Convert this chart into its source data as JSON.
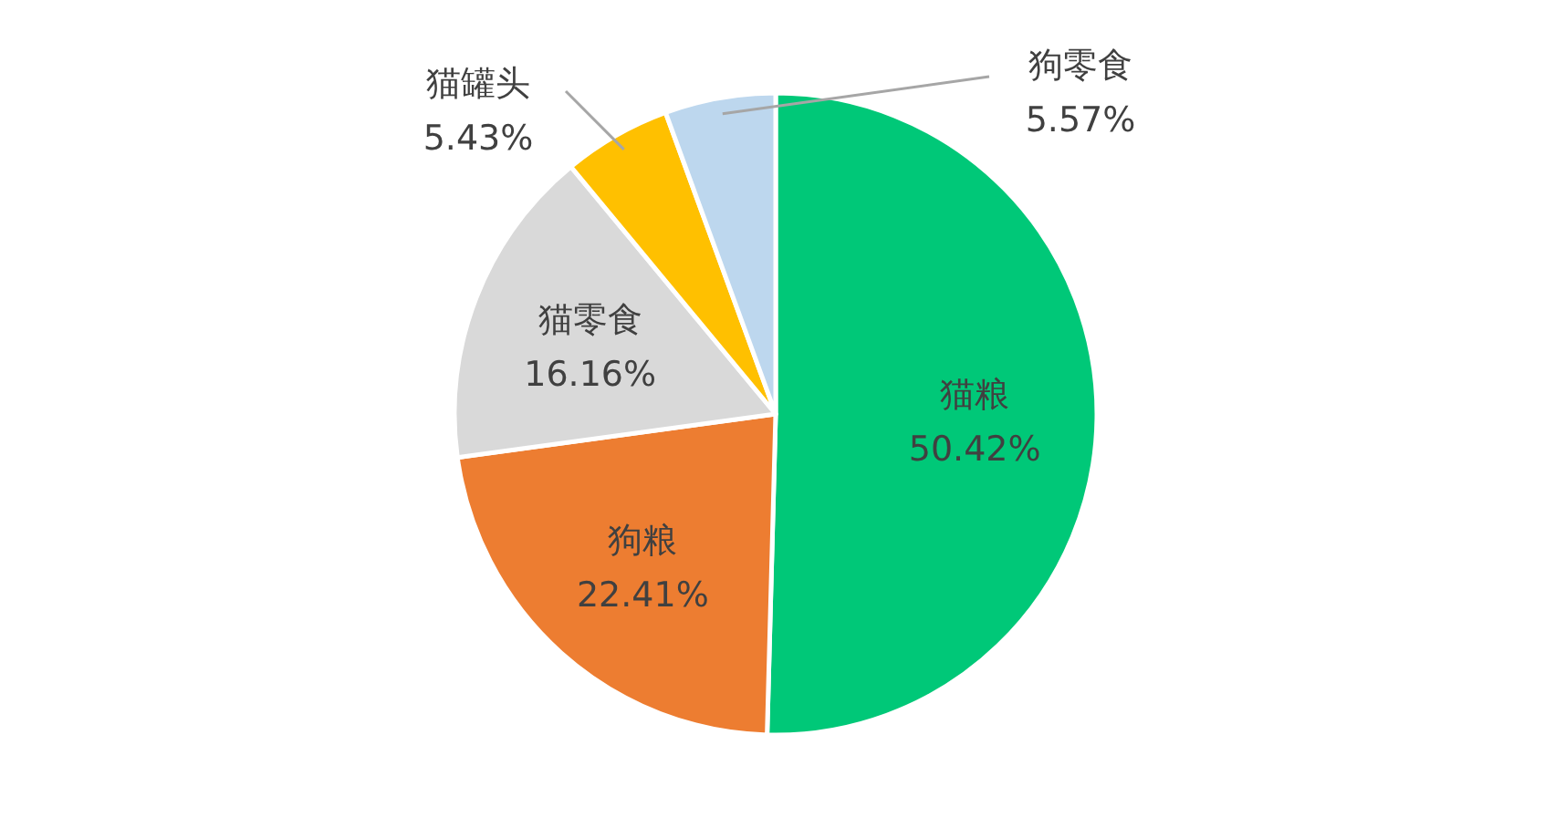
{
  "chart_data": {
    "type": "pie",
    "categories": [
      "猫粮",
      "狗粮",
      "猫零食",
      "猫罐头",
      "狗零食"
    ],
    "values": [
      50.42,
      22.41,
      16.16,
      5.43,
      5.57
    ],
    "colors": [
      "#00c878",
      "#ed7d31",
      "#d9d9d9",
      "#ffc000",
      "#bdd7ee"
    ],
    "value_labels": [
      "50.42%",
      "22.41%",
      "16.16%",
      "5.43%",
      "5.57%"
    ]
  }
}
